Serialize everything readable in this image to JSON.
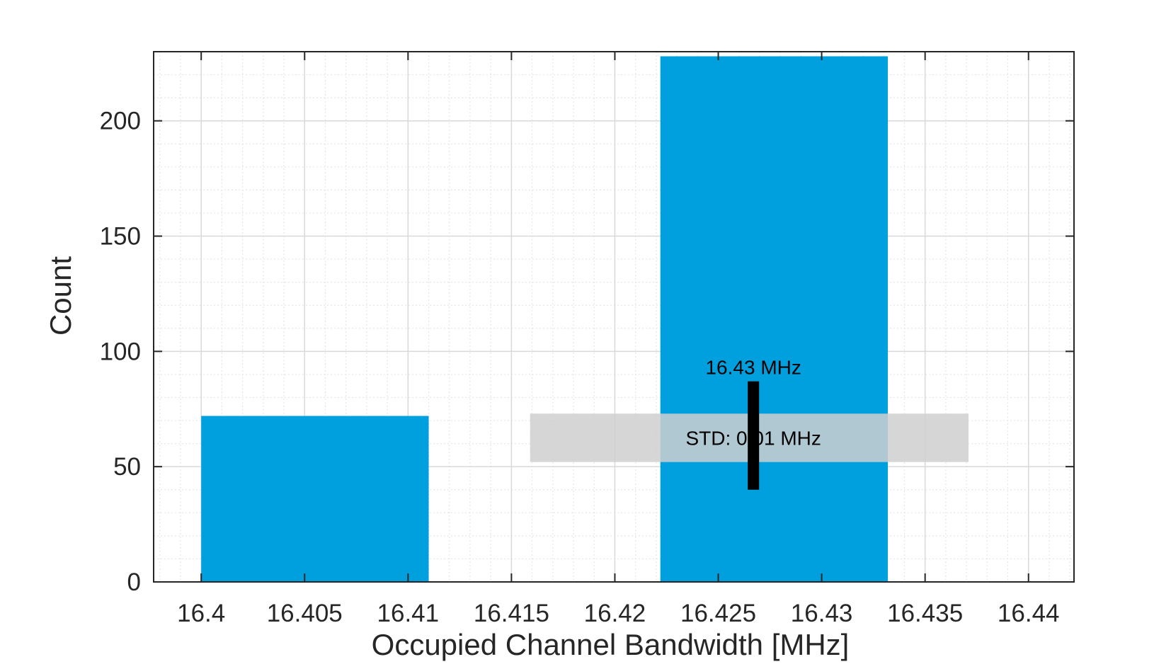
{
  "chart_data": {
    "type": "bar",
    "subtype": "histogram",
    "xlabel": "Occupied Channel Bandwidth [MHz]",
    "ylabel": "Count",
    "xlim": [
      16.3977,
      16.4422
    ],
    "ylim": [
      0,
      230
    ],
    "xticks": [
      "16.4",
      "16.405",
      "16.41",
      "16.415",
      "16.42",
      "16.425",
      "16.43",
      "16.435",
      "16.44"
    ],
    "yticks": [
      "0",
      "50",
      "100",
      "150",
      "200"
    ],
    "grid": true,
    "minor_grid": true,
    "bars": [
      {
        "x_start": 16.4,
        "x_end": 16.411,
        "value": 72
      },
      {
        "x_start": 16.4222,
        "x_end": 16.4332,
        "value": 228
      }
    ],
    "mean": {
      "x": 16.4267,
      "label": "16.43 MHz",
      "marker_ymin": 40,
      "marker_ymax": 87
    },
    "std": {
      "x_start": 16.4159,
      "x_end": 16.4371,
      "y_start": 52,
      "y_end": 73,
      "label": "STD: 0.01 MHz"
    }
  },
  "colors": {
    "bar": "#00a0df",
    "std_band": "#cfcfcf",
    "mean_marker": "#000000",
    "axes": "#262626",
    "grid_major": "#d9d9d9",
    "grid_minor": "#e6e6e6"
  }
}
